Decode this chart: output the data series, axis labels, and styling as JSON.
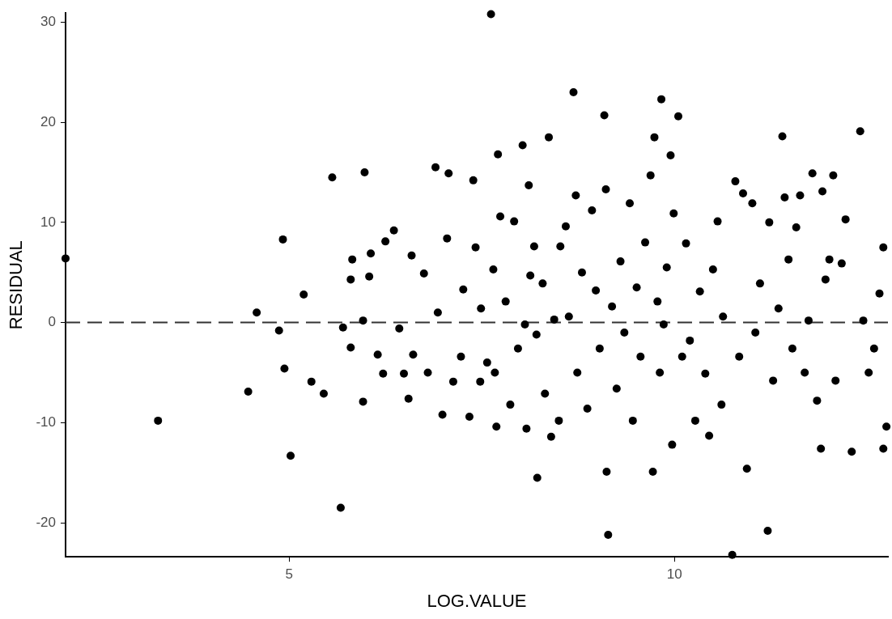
{
  "chart_data": {
    "type": "scatter",
    "xlabel": "LOG.VALUE",
    "ylabel": "RESIDUAL",
    "color": "#000000",
    "marker": "circle",
    "grid": false,
    "legend": false,
    "xlim": [
      2.1,
      12.77
    ],
    "ylim": [
      -23.4,
      30.9
    ],
    "xticks": [
      5,
      10
    ],
    "yticks": [
      -20,
      -10,
      0,
      10,
      20,
      30
    ],
    "ref_lines": [
      {
        "axis": "y",
        "value": 0,
        "line_style": "dashed",
        "color": "#333333"
      }
    ],
    "x": [
      2.1,
      3.3,
      4.47,
      4.58,
      4.87,
      4.92,
      4.94,
      5.02,
      5.19,
      5.29,
      5.45,
      5.56,
      5.67,
      5.7,
      5.8,
      5.8,
      5.82,
      5.96,
      5.96,
      5.98,
      6.04,
      6.06,
      6.15,
      6.22,
      6.25,
      6.36,
      6.43,
      6.49,
      6.55,
      6.59,
      6.61,
      6.75,
      6.8,
      6.9,
      6.93,
      6.99,
      7.05,
      7.07,
      7.13,
      7.23,
      7.26,
      7.34,
      7.39,
      7.42,
      7.48,
      7.49,
      7.57,
      7.62,
      7.65,
      7.67,
      7.69,
      7.71,
      7.74,
      7.81,
      7.87,
      7.92,
      7.97,
      8.03,
      8.06,
      8.08,
      8.11,
      8.13,
      8.18,
      8.21,
      8.22,
      8.29,
      8.32,
      8.37,
      8.4,
      8.44,
      8.5,
      8.52,
      8.59,
      8.63,
      8.69,
      8.72,
      8.74,
      8.8,
      8.87,
      8.93,
      8.98,
      9.03,
      9.09,
      9.11,
      9.12,
      9.14,
      9.19,
      9.25,
      9.3,
      9.35,
      9.42,
      9.46,
      9.51,
      9.56,
      9.62,
      9.69,
      9.72,
      9.74,
      9.78,
      9.81,
      9.83,
      9.86,
      9.9,
      9.95,
      9.97,
      9.99,
      10.05,
      10.1,
      10.15,
      10.2,
      10.27,
      10.33,
      10.4,
      10.45,
      10.5,
      10.56,
      10.61,
      10.63,
      10.75,
      10.79,
      10.84,
      10.89,
      10.94,
      11.01,
      11.05,
      11.11,
      11.21,
      11.23,
      11.28,
      11.35,
      11.4,
      11.43,
      11.48,
      11.53,
      11.58,
      11.63,
      11.69,
      11.74,
      11.79,
      11.85,
      11.9,
      11.92,
      11.96,
      12.01,
      12.06,
      12.09,
      12.17,
      12.22,
      12.3,
      12.41,
      12.45,
      12.52,
      12.59,
      12.66,
      12.71,
      12.71,
      12.75
    ],
    "values": [
      6.4,
      -9.8,
      -6.9,
      1.0,
      -0.8,
      8.3,
      -4.6,
      -13.3,
      2.8,
      -5.9,
      -7.1,
      14.5,
      -18.5,
      -0.5,
      4.3,
      -2.5,
      6.3,
      0.2,
      -7.9,
      15.0,
      4.6,
      6.9,
      -3.2,
      -5.1,
      8.1,
      9.2,
      -0.6,
      -5.1,
      -7.6,
      6.7,
      -3.2,
      4.9,
      -5.0,
      15.5,
      1.0,
      -9.2,
      8.4,
      14.9,
      -5.9,
      -3.4,
      3.3,
      -9.4,
      14.2,
      7.5,
      -5.9,
      1.4,
      -4.0,
      30.8,
      5.3,
      -5.0,
      -10.4,
      16.8,
      10.6,
      2.1,
      -8.2,
      10.1,
      -2.6,
      17.7,
      -0.2,
      -10.6,
      13.7,
      4.7,
      7.6,
      -1.2,
      -15.5,
      3.9,
      -7.1,
      18.5,
      -11.4,
      0.3,
      -9.8,
      7.6,
      9.6,
      0.6,
      23.0,
      12.7,
      -5.0,
      5.0,
      -8.6,
      11.2,
      3.2,
      -2.6,
      20.7,
      13.3,
      -14.9,
      -21.2,
      1.6,
      -6.6,
      6.1,
      -1.0,
      11.9,
      -9.8,
      3.5,
      -3.4,
      8.0,
      14.7,
      -14.9,
      18.5,
      2.1,
      -5.0,
      22.3,
      -0.2,
      5.5,
      16.7,
      -12.2,
      10.9,
      20.6,
      -3.4,
      7.9,
      -1.8,
      -9.8,
      3.1,
      -5.1,
      -11.3,
      5.3,
      10.1,
      -8.2,
      0.6,
      -23.2,
      14.1,
      -3.4,
      12.9,
      -14.6,
      11.9,
      -1.0,
      3.9,
      -20.8,
      10.0,
      -5.8,
      1.4,
      18.6,
      12.5,
      6.3,
      -2.6,
      9.5,
      12.7,
      -5.0,
      0.2,
      14.9,
      -7.8,
      -12.6,
      13.1,
      4.3,
      6.3,
      14.7,
      -5.8,
      5.9,
      10.3,
      -12.9,
      19.1,
      0.2,
      -5.0,
      -2.6,
      2.9,
      7.5,
      -12.6,
      -10.4
    ]
  }
}
